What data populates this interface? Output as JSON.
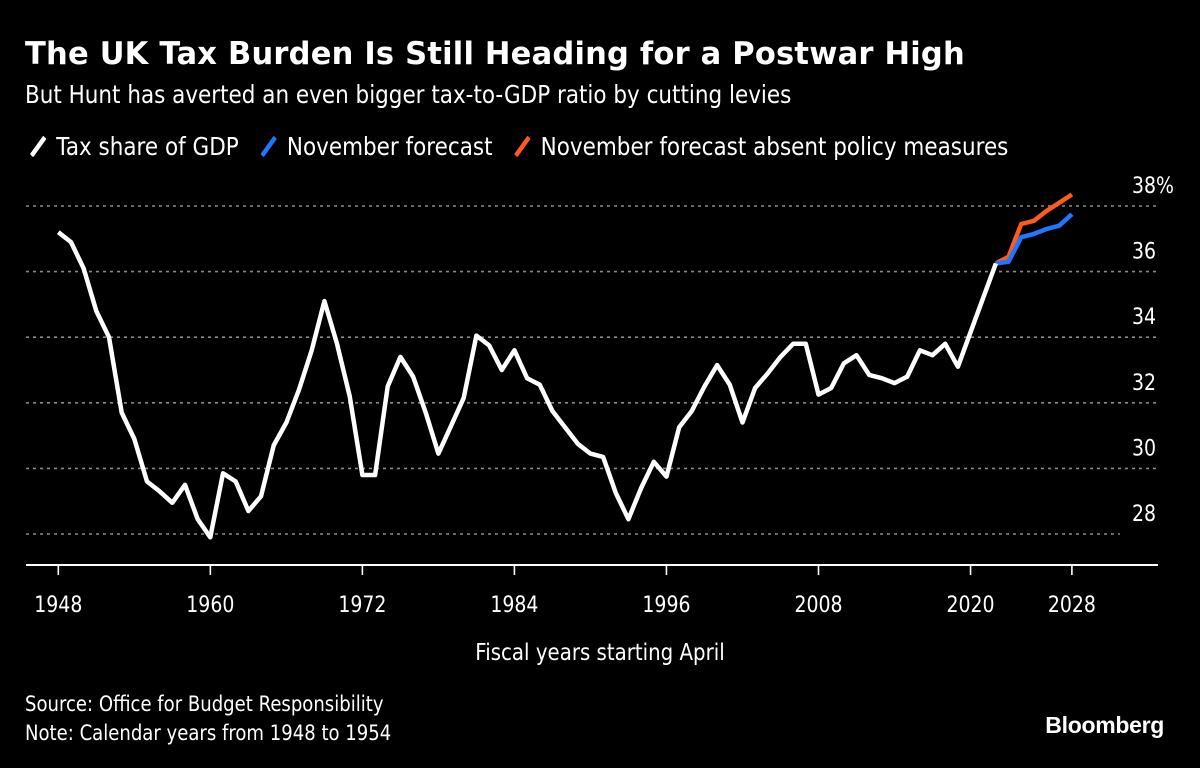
{
  "header": {
    "title": "The UK Tax Burden Is Still Heading for a Postwar High",
    "subtitle": "But Hunt has averted an even bigger tax-to-GDP ratio by cutting levies"
  },
  "legend": [
    {
      "label": "Tax share of GDP",
      "color": "#ffffff"
    },
    {
      "label": "November forecast",
      "color": "#1f77ff"
    },
    {
      "label": "November forecast absent policy measures",
      "color": "#ff5a1f"
    }
  ],
  "footer": {
    "source": "Source: Office for Budget Responsibility",
    "note": "Note: Calendar years from 1948 to 1954",
    "brand": "Bloomberg"
  },
  "chart_data": {
    "type": "line",
    "title": "The UK Tax Burden Is Still Heading for a Postwar High",
    "subtitle": "But Hunt has averted an even bigger tax-to-GDP ratio by cutting levies",
    "xlabel": "Fiscal years starting April",
    "ylabel": "",
    "xlim": [
      1947,
      2035
    ],
    "ylim": [
      27,
      39
    ],
    "x_ticks": [
      1948,
      1960,
      1972,
      1984,
      1996,
      2008,
      2020,
      2028
    ],
    "y_ticks": [
      28,
      30,
      32,
      34,
      36,
      38
    ],
    "y_tick_labels": [
      "28",
      "30",
      "32",
      "34",
      "36",
      "38%"
    ],
    "y_axis_side": "right",
    "grid": "horizontal dotted",
    "legend_position": "top-left",
    "series": [
      {
        "name": "Tax share of GDP",
        "color": "#ffffff",
        "x": [
          1948,
          1949,
          1950,
          1951,
          1952,
          1953,
          1954,
          1955,
          1956,
          1957,
          1958,
          1959,
          1960,
          1961,
          1962,
          1963,
          1964,
          1965,
          1966,
          1967,
          1968,
          1969,
          1970,
          1971,
          1972,
          1973,
          1974,
          1975,
          1976,
          1977,
          1978,
          1979,
          1980,
          1981,
          1982,
          1983,
          1984,
          1985,
          1986,
          1987,
          1988,
          1989,
          1990,
          1991,
          1992,
          1993,
          1994,
          1995,
          1996,
          1997,
          1998,
          1999,
          2000,
          2001,
          2002,
          2003,
          2004,
          2005,
          2006,
          2007,
          2008,
          2009,
          2010,
          2011,
          2012,
          2013,
          2014,
          2015,
          2016,
          2017,
          2018,
          2019,
          2020,
          2021,
          2022
        ],
        "values": [
          37.2,
          36.9,
          36.1,
          34.8,
          34.0,
          31.7,
          30.9,
          29.6,
          29.3,
          28.95,
          29.5,
          28.45,
          27.9,
          29.85,
          29.6,
          28.7,
          29.15,
          30.7,
          31.4,
          32.4,
          33.6,
          35.1,
          33.8,
          32.2,
          29.8,
          29.8,
          32.5,
          33.4,
          32.8,
          31.7,
          30.45,
          31.3,
          32.15,
          34.05,
          33.75,
          33.0,
          33.6,
          32.75,
          32.55,
          31.75,
          31.25,
          30.75,
          30.45,
          30.35,
          29.25,
          28.45,
          29.4,
          30.2,
          29.75,
          31.25,
          31.75,
          32.5,
          33.15,
          32.55,
          31.4,
          32.45,
          32.9,
          33.4,
          33.8,
          33.8,
          32.25,
          32.45,
          33.2,
          33.45,
          32.85,
          32.75,
          32.6,
          32.8,
          33.6,
          33.45,
          33.8,
          33.1,
          34.15,
          35.2,
          36.25
        ]
      },
      {
        "name": "November forecast",
        "color": "#1f77ff",
        "x": [
          2022,
          2023,
          2024,
          2025,
          2026,
          2027,
          2028
        ],
        "values": [
          36.25,
          36.3,
          37.05,
          37.15,
          37.3,
          37.4,
          37.75
        ]
      },
      {
        "name": "November forecast absent policy measures",
        "color": "#ff5a1f",
        "x": [
          2022,
          2023,
          2024,
          2025,
          2026,
          2027,
          2028
        ],
        "values": [
          36.25,
          36.45,
          37.45,
          37.55,
          37.85,
          38.1,
          38.35
        ]
      }
    ]
  }
}
